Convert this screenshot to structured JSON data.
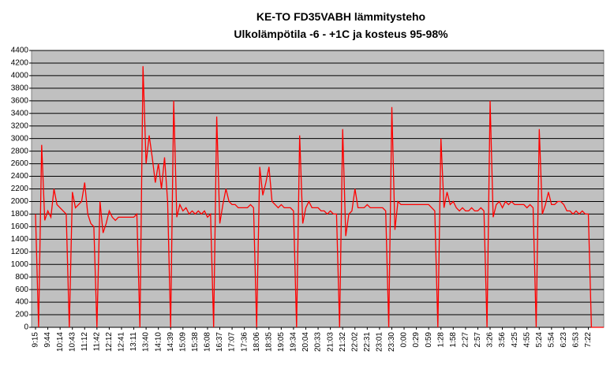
{
  "chart_data": {
    "type": "line",
    "title": "KE-TO FD35VABH lämmitysteho",
    "subtitle": "Ulkolämpötila  -6 - +1C ja kosteus 95-98%",
    "color": "#ff0000",
    "background": "#c0c0c0",
    "grid": true,
    "ylim": [
      0,
      4400
    ],
    "yticks": [
      0,
      200,
      400,
      600,
      800,
      1000,
      1200,
      1400,
      1600,
      1800,
      2000,
      2200,
      2400,
      2600,
      2800,
      3000,
      3200,
      3400,
      3600,
      3800,
      4000,
      4200,
      4400
    ],
    "categories": [
      "9:15",
      null,
      null,
      null,
      "9:44",
      null,
      null,
      null,
      "10:14",
      null,
      null,
      null,
      "10:43",
      null,
      null,
      null,
      "11:12",
      null,
      null,
      null,
      "11:42",
      null,
      null,
      null,
      "12:12",
      null,
      null,
      null,
      "12:41",
      null,
      null,
      null,
      "13:11",
      null,
      null,
      null,
      "13:40",
      null,
      null,
      null,
      "14:10",
      null,
      null,
      null,
      "14:39",
      null,
      null,
      null,
      "15:09",
      null,
      null,
      null,
      "15:38",
      null,
      null,
      null,
      "16:08",
      null,
      null,
      null,
      "16:37",
      null,
      null,
      null,
      "17:07",
      null,
      null,
      null,
      "17:36",
      null,
      null,
      null,
      "18:06",
      null,
      null,
      null,
      "18:35",
      null,
      null,
      null,
      "19:05",
      null,
      null,
      null,
      "19:34",
      null,
      null,
      null,
      "20:04",
      null,
      null,
      null,
      "20:33",
      null,
      null,
      null,
      "21:03",
      null,
      null,
      null,
      "21:32",
      null,
      null,
      null,
      "22:02",
      null,
      null,
      null,
      "22:31",
      null,
      null,
      null,
      "23:01",
      null,
      null,
      null,
      "23:30",
      null,
      null,
      null,
      "0:00",
      null,
      null,
      null,
      "0:29",
      null,
      null,
      null,
      "0:59",
      null,
      null,
      null,
      "1:28",
      null,
      null,
      null,
      "1:58",
      null,
      null,
      null,
      "2:27",
      null,
      null,
      null,
      "2:57",
      null,
      null,
      null,
      "3:26",
      null,
      null,
      null,
      "3:56",
      null,
      null,
      null,
      "4:25",
      null,
      null,
      null,
      "4:55",
      null,
      null,
      null,
      "5:24",
      null,
      null,
      null,
      "5:54",
      null,
      null,
      null,
      "6:23",
      null,
      null,
      null,
      "6:53",
      null,
      null,
      null,
      "7:22",
      null,
      null,
      null,
      null,
      null
    ],
    "values": [
      1800,
      0,
      2900,
      1700,
      1850,
      1750,
      2200,
      1950,
      1900,
      1850,
      1800,
      0,
      2150,
      1900,
      1950,
      2000,
      2300,
      1800,
      1650,
      1600,
      0,
      2000,
      1500,
      1650,
      1850,
      1750,
      1700,
      1750,
      1750,
      1750,
      1750,
      1750,
      1750,
      1800,
      0,
      4150,
      2600,
      3050,
      2700,
      2300,
      2600,
      2200,
      2700,
      2000,
      0,
      3600,
      1750,
      1950,
      1850,
      1900,
      1800,
      1850,
      1800,
      1850,
      1800,
      1850,
      1750,
      1800,
      0,
      3350,
      1650,
      1950,
      2200,
      2000,
      1950,
      1950,
      1900,
      1900,
      1900,
      1900,
      1950,
      1900,
      0,
      2550,
      2100,
      2300,
      2550,
      2000,
      1950,
      1900,
      1950,
      1900,
      1900,
      1900,
      1850,
      0,
      3050,
      1650,
      1900,
      2000,
      1900,
      1900,
      1900,
      1850,
      1850,
      1800,
      1850,
      1800,
      1800,
      0,
      3150,
      1450,
      1800,
      1850,
      2200,
      1900,
      1900,
      1900,
      1950,
      1900,
      1900,
      1900,
      1900,
      1900,
      1850,
      0,
      3500,
      1550,
      2000,
      1950,
      1950,
      1950,
      1950,
      1950,
      1950,
      1950,
      1950,
      1950,
      1950,
      1900,
      1850,
      0,
      3000,
      1900,
      2150,
      1950,
      2000,
      1900,
      1850,
      1900,
      1850,
      1850,
      1900,
      1850,
      1850,
      1900,
      1850,
      0,
      3600,
      1750,
      1950,
      2000,
      1900,
      2000,
      1950,
      2000,
      1950,
      1950,
      1950,
      1950,
      1900,
      1950,
      1900,
      0,
      3150,
      1800,
      1950,
      2150,
      1950,
      1950,
      2000,
      2000,
      1950,
      1850,
      1850,
      1800,
      1850,
      1800,
      1850,
      1800,
      1800,
      0,
      0,
      0,
      0,
      0
    ]
  }
}
